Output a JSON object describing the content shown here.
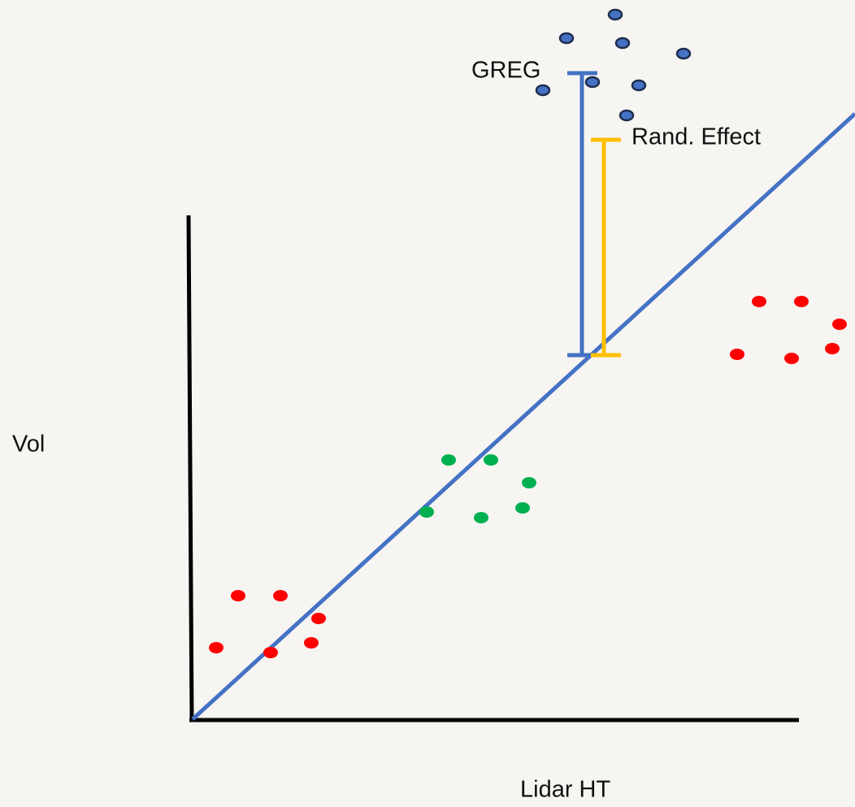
{
  "labels": {
    "greg": "GREG",
    "rand_effect": "Rand. Effect",
    "y_axis": "Vol",
    "x_axis": "Lidar HT"
  }
}
